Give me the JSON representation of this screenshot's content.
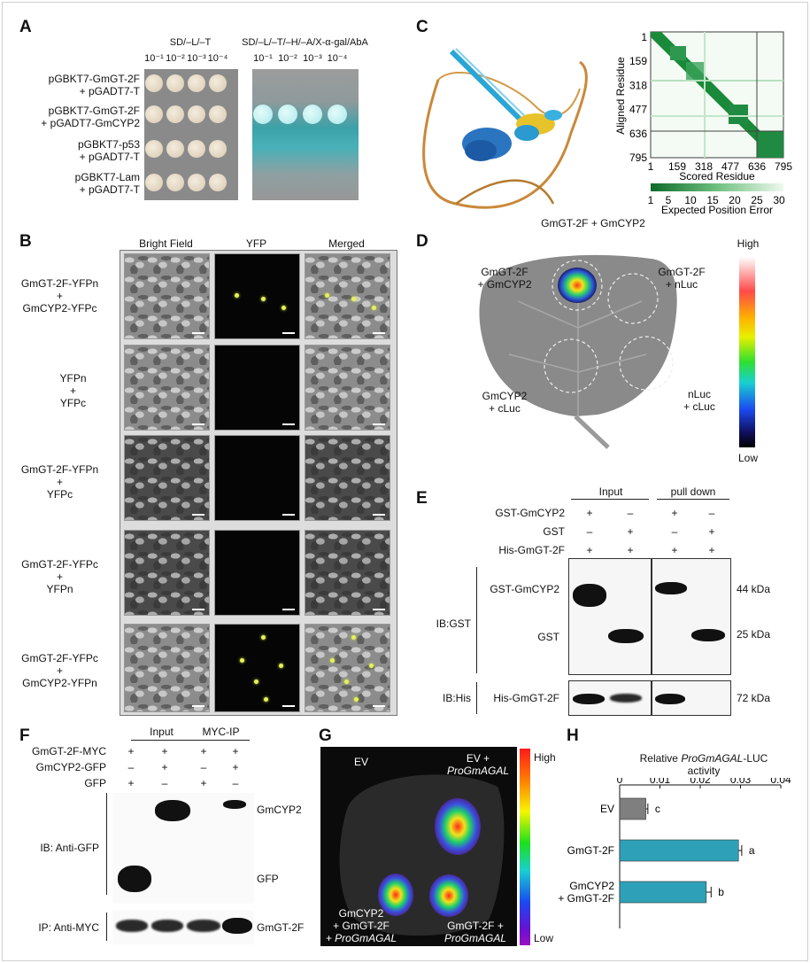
{
  "panels": {
    "a": "A",
    "b": "B",
    "c": "C",
    "d": "D",
    "e": "E",
    "f": "F",
    "g": "G",
    "h": "H"
  },
  "panel_a": {
    "cond1": "SD/–L/–T",
    "cond2": "SD/–L/–T/–H/–A/X-α-gal/AbA",
    "dilutions": [
      "10⁻¹",
      "10⁻²",
      "10⁻³",
      "10⁻⁴"
    ],
    "rows": [
      {
        "l1": "pGBKT7-GmGT-2F",
        "l2": "+ pGADT7-T"
      },
      {
        "l1": "pGBKT7-GmGT-2F",
        "l2": "+ pGADT7-GmCYP2"
      },
      {
        "l1": "pGBKT7-p53",
        "l2": "+ pGADT7-T"
      },
      {
        "l1": "pGBKT7-Lam",
        "l2": "+ pGADT7-T"
      }
    ]
  },
  "panel_b": {
    "cols": [
      "Bright Field",
      "YFP",
      "Merged"
    ],
    "rows": [
      {
        "l1": "GmGT-2F-YFPn",
        "l2": "+",
        "l3": "GmCYP2-YFPc"
      },
      {
        "l1": "YFPn",
        "l2": "+",
        "l3": "YFPc"
      },
      {
        "l1": "GmGT-2F-YFPn",
        "l2": "+",
        "l3": "YFPc"
      },
      {
        "l1": "GmGT-2F-YFPc",
        "l2": "+",
        "l3": "YFPn"
      },
      {
        "l1": "GmGT-2F-YFPc",
        "l2": "+",
        "l3": "GmCYP2-YFPn"
      }
    ]
  },
  "panel_c": {
    "caption": "GmGT-2F + GmCYP2",
    "ylabel": "Aligned Residue",
    "xlabel": "Scored Residue",
    "ticks": [
      "1",
      "159",
      "318",
      "477",
      "636",
      "795"
    ],
    "cbar_ticks": [
      "1",
      "5",
      "10",
      "15",
      "20",
      "25",
      "30"
    ],
    "cbar_label": "Expected Position Error"
  },
  "panel_d": {
    "high": "High",
    "low": "Low",
    "q1a": "GmGT-2F",
    "q1b": "+ GmCYP2",
    "q2a": "GmGT-2F",
    "q2b": "+ nLuc",
    "q3a": "GmCYP2",
    "q3b": "+ cLuc",
    "q4a": "nLuc",
    "q4b": "+ cLuc"
  },
  "panel_e": {
    "input": "Input",
    "pulldown": "pull down",
    "rows": [
      {
        "name": "GST-GmCYP2",
        "signs": [
          "+",
          "–",
          "+",
          "–"
        ]
      },
      {
        "name": "GST",
        "signs": [
          "–",
          "+",
          "–",
          "+"
        ]
      },
      {
        "name": "His-GmGT-2F",
        "signs": [
          "+",
          "+",
          "+",
          "+"
        ]
      }
    ],
    "ib_gst": "IB:GST",
    "ib_his": "IB:His",
    "band_gst_cyp": "GST-GmCYP2",
    "band_gst": "GST",
    "band_his": "His-GmGT-2F",
    "mw1": "44 kDa",
    "mw2": "25 kDa",
    "mw3": "72 kDa"
  },
  "panel_f": {
    "input": "Input",
    "myc_ip": "MYC-IP",
    "rows": [
      {
        "name": "GmGT-2F-MYC",
        "signs": [
          "+",
          "+",
          "+",
          "+"
        ]
      },
      {
        "name": "GmCYP2-GFP",
        "signs": [
          "–",
          "+",
          "–",
          "+"
        ]
      },
      {
        "name": "GFP",
        "signs": [
          "+",
          "–",
          "+",
          "–"
        ]
      }
    ],
    "ib_gfp": "IB: Anti-GFP",
    "ip_myc": "IP: Anti-MYC",
    "lbl_cyp": "GmCYP2",
    "lbl_gfp": "GFP",
    "lbl_gt": "GmGT-2F"
  },
  "panel_g": {
    "high": "High",
    "low": "Low",
    "ev": "EV",
    "ev_pro_a": "EV +",
    "ev_pro_b": "ProGmAGAL",
    "cyp_a": "GmCYP2",
    "cyp_b": "+ GmGT-2F",
    "cyp_c": "+ ProGmAGAL",
    "gt_a": "GmGT-2F +",
    "gt_b": "ProGmAGAL"
  },
  "chart_data": {
    "type": "bar",
    "orientation": "horizontal",
    "title_pre": "Relative ",
    "title_italic": "ProGmAGAL",
    "title_post": "-LUC",
    "title_line2": "activity",
    "xticks": [
      "0",
      "0.01",
      "0.02",
      "0.03",
      "0.04"
    ],
    "xlim": [
      0,
      0.04
    ],
    "categories": [
      "EV",
      "GmGT-2F",
      "GmCYP2\n+ GmGT-2F"
    ],
    "values": [
      0.0065,
      0.0295,
      0.0215
    ],
    "errors": [
      0.0005,
      0.0008,
      0.0012
    ],
    "letters": [
      "c",
      "a",
      "b"
    ],
    "colors": [
      "#7f7f7f",
      "#2ea1b8",
      "#2ea1b8"
    ]
  }
}
